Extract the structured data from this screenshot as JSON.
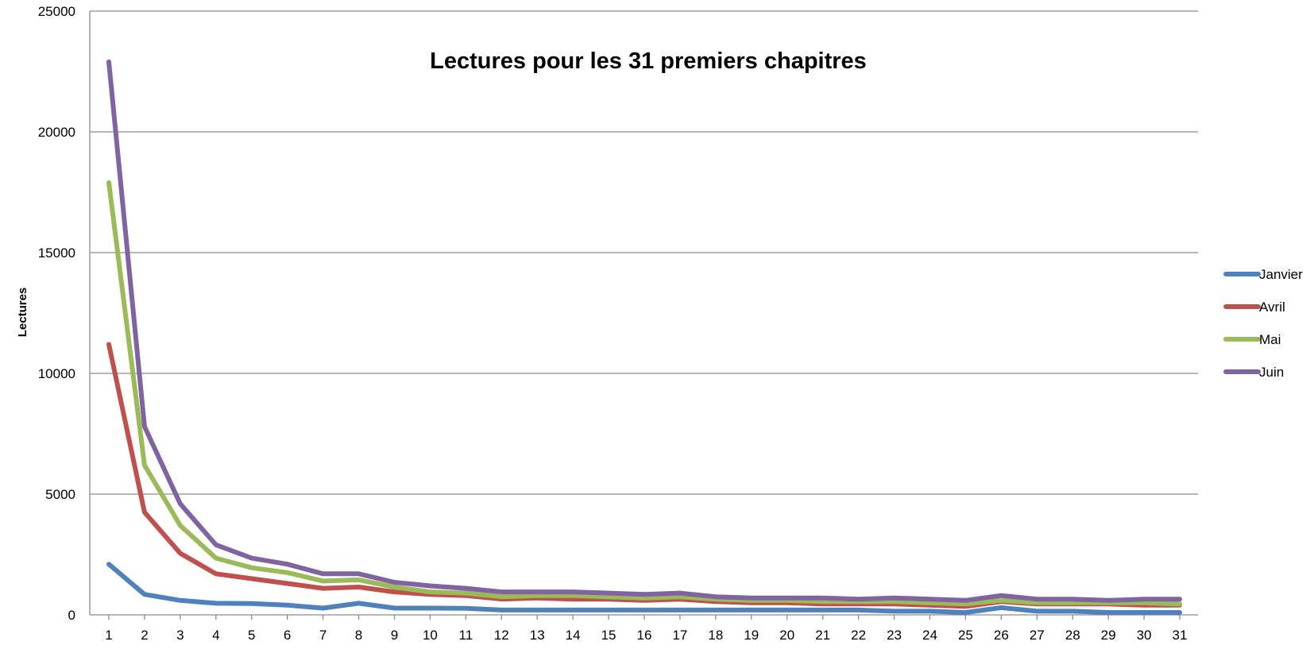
{
  "chart_data": {
    "type": "line",
    "title": "Lectures pour les 31 premiers chapitres",
    "xlabel": "",
    "ylabel": "Lectures",
    "ylim": [
      0,
      25000
    ],
    "yticks": [
      "0",
      "5000",
      "10000",
      "15000",
      "20000",
      "25000"
    ],
    "x": [
      "1",
      "2",
      "3",
      "4",
      "5",
      "6",
      "7",
      "8",
      "9",
      "10",
      "11",
      "12",
      "13",
      "14",
      "15",
      "16",
      "17",
      "18",
      "19",
      "20",
      "21",
      "22",
      "23",
      "24",
      "25",
      "26",
      "27",
      "28",
      "29",
      "30",
      "31"
    ],
    "grid": true,
    "legend": "right",
    "series": [
      {
        "name": "Janvier",
        "color": "#4f81bd",
        "values": [
          2100,
          850,
          600,
          480,
          470,
          400,
          280,
          480,
          280,
          280,
          270,
          200,
          200,
          200,
          200,
          200,
          200,
          200,
          200,
          200,
          200,
          200,
          150,
          150,
          100,
          300,
          150,
          150,
          100,
          100,
          100
        ]
      },
      {
        "name": "Avril",
        "color": "#c0504d",
        "values": [
          11200,
          4250,
          2550,
          1700,
          1500,
          1300,
          1100,
          1150,
          950,
          850,
          800,
          650,
          700,
          650,
          650,
          600,
          650,
          550,
          500,
          500,
          450,
          450,
          450,
          400,
          350,
          550,
          450,
          450,
          450,
          400,
          400
        ]
      },
      {
        "name": "Mai",
        "color": "#9bbb59",
        "values": [
          17900,
          6200,
          3700,
          2350,
          1950,
          1750,
          1400,
          1450,
          1150,
          950,
          900,
          750,
          800,
          800,
          750,
          700,
          750,
          650,
          600,
          600,
          550,
          550,
          550,
          500,
          450,
          600,
          500,
          500,
          500,
          500,
          450
        ]
      },
      {
        "name": "Juin",
        "color": "#8064a2",
        "values": [
          22900,
          7800,
          4600,
          2900,
          2350,
          2100,
          1700,
          1700,
          1350,
          1200,
          1100,
          950,
          950,
          950,
          900,
          850,
          900,
          750,
          700,
          700,
          700,
          650,
          700,
          650,
          600,
          800,
          650,
          650,
          600,
          650,
          650
        ]
      }
    ]
  }
}
